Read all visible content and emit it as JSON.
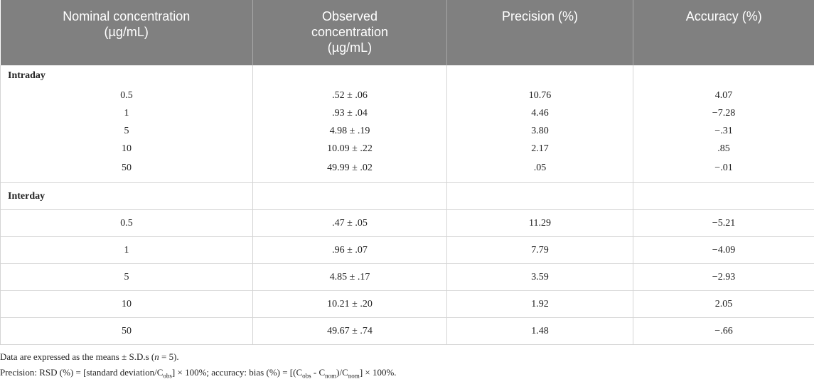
{
  "table": {
    "header": [
      [
        "Nominal concentration",
        "(µg/mL)"
      ],
      [
        "Observed",
        "concentration",
        "(µg/mL)"
      ],
      [
        "Precision (%)"
      ],
      [
        "Accuracy (%)"
      ]
    ],
    "sections": [
      {
        "label": "Intraday",
        "rows": [
          [
            "0.5",
            ".52 ± .06",
            "10.76",
            "4.07"
          ],
          [
            "1",
            ".93 ± .04",
            "4.46",
            "−7.28"
          ],
          [
            "5",
            "4.98 ± .19",
            "3.80",
            "−.31"
          ],
          [
            "10",
            "10.09 ± .22",
            "2.17",
            ".85"
          ],
          [
            "50",
            "49.99 ± .02",
            ".05",
            "−.01"
          ]
        ]
      },
      {
        "label": "Interday",
        "rows": [
          [
            "0.5",
            ".47 ± .05",
            "11.29",
            "−5.21"
          ],
          [
            "1",
            ".96 ± .07",
            "7.79",
            "−4.09"
          ],
          [
            "5",
            "4.85 ± .17",
            "3.59",
            "−2.93"
          ],
          [
            "10",
            "10.21 ± .20",
            "1.92",
            "2.05"
          ],
          [
            "50",
            "49.67 ± .74",
            "1.48",
            "−.66"
          ]
        ]
      }
    ]
  },
  "notes": [
    [
      "Data are expressed as the means ± S.D.s (",
      "n",
      " = 5)."
    ],
    [
      "Precision: RSD (%) = [standard deviation/C",
      "obs",
      "] × 100%; accuracy: bias (%) = [(C",
      "obs",
      " - C",
      "nom",
      ")/C",
      "nom",
      "] × 100%."
    ]
  ]
}
